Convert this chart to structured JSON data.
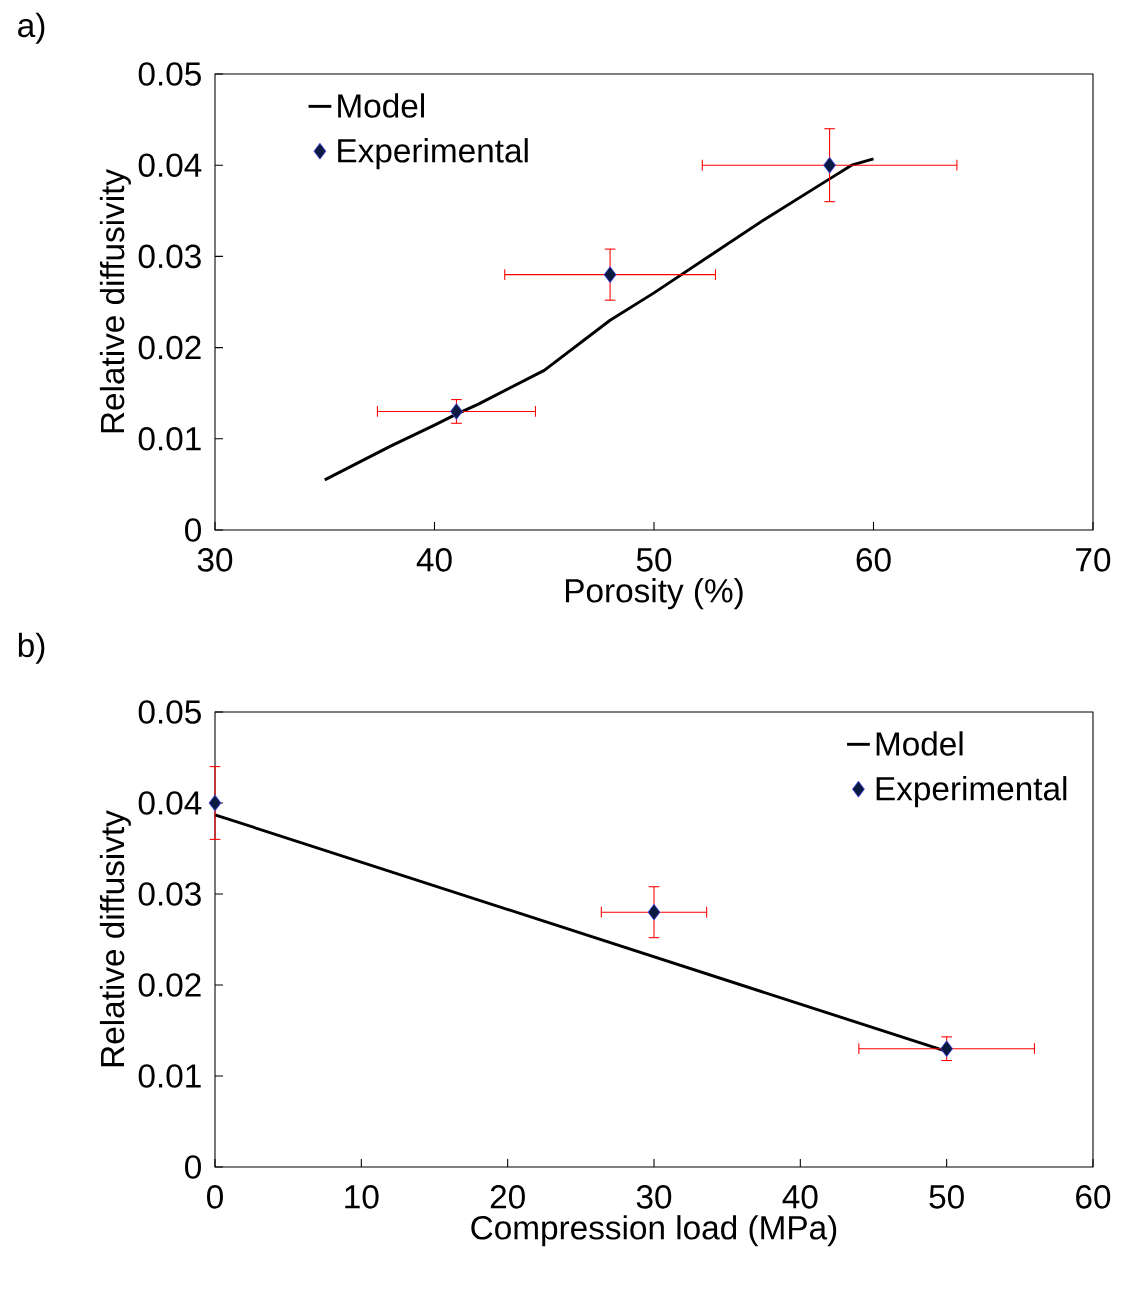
{
  "chart_data": [
    {
      "type": "line",
      "xlabel": "Porosity (%)",
      "ylabel": "Relative diffusivity",
      "annotations": [
        "a)"
      ],
      "xlim": [
        30,
        70
      ],
      "xticks": [
        30,
        40,
        50,
        60,
        70
      ],
      "ylim": [
        0,
        0.05
      ],
      "yticks": [
        0,
        0.01,
        0.02,
        0.03,
        0.04,
        0.05
      ],
      "grid": false,
      "legend": "top left",
      "series": [
        {
          "name": "Model",
          "color": "#000000",
          "marker": "none",
          "x": [
            35,
            38,
            40,
            41,
            42,
            45,
            48,
            50,
            55,
            58,
            59,
            60
          ],
          "values": [
            0.0055,
            0.0092,
            0.0115,
            0.0127,
            0.0138,
            0.0175,
            0.023,
            0.026,
            0.034,
            0.0385,
            0.04,
            0.0407
          ]
        },
        {
          "name": "Experimental",
          "type": "scatter",
          "color": "#0a1a40",
          "marker": "diamond",
          "x": [
            41,
            48,
            58
          ],
          "values": [
            0.013,
            0.028,
            0.04
          ],
          "errors": [
            0.0013,
            0.0028,
            0.004
          ],
          "xerrors": [
            3.6,
            4.8,
            5.8
          ]
        }
      ]
    },
    {
      "type": "line",
      "xlabel": "Compression load (MPa)",
      "ylabel": "Relative diffusivty",
      "annotations": [
        "b)"
      ],
      "xlim": [
        0,
        60
      ],
      "xticks": [
        0,
        10,
        20,
        30,
        40,
        50,
        60
      ],
      "ylim": [
        0,
        0.05
      ],
      "yticks": [
        0,
        0.01,
        0.02,
        0.03,
        0.04,
        0.05
      ],
      "grid": false,
      "legend": "top right",
      "series": [
        {
          "name": "Model",
          "color": "#000000",
          "marker": "none",
          "x": [
            0,
            50
          ],
          "values": [
            0.0387,
            0.0127
          ]
        },
        {
          "name": "Experimental",
          "type": "scatter",
          "color": "#0a1a40",
          "marker": "diamond",
          "x": [
            0,
            30,
            50
          ],
          "values": [
            0.04,
            0.028,
            0.013
          ],
          "errors": [
            0.004,
            0.0028,
            0.0013
          ],
          "xerrors": [
            null,
            3.6,
            6
          ]
        }
      ]
    }
  ]
}
